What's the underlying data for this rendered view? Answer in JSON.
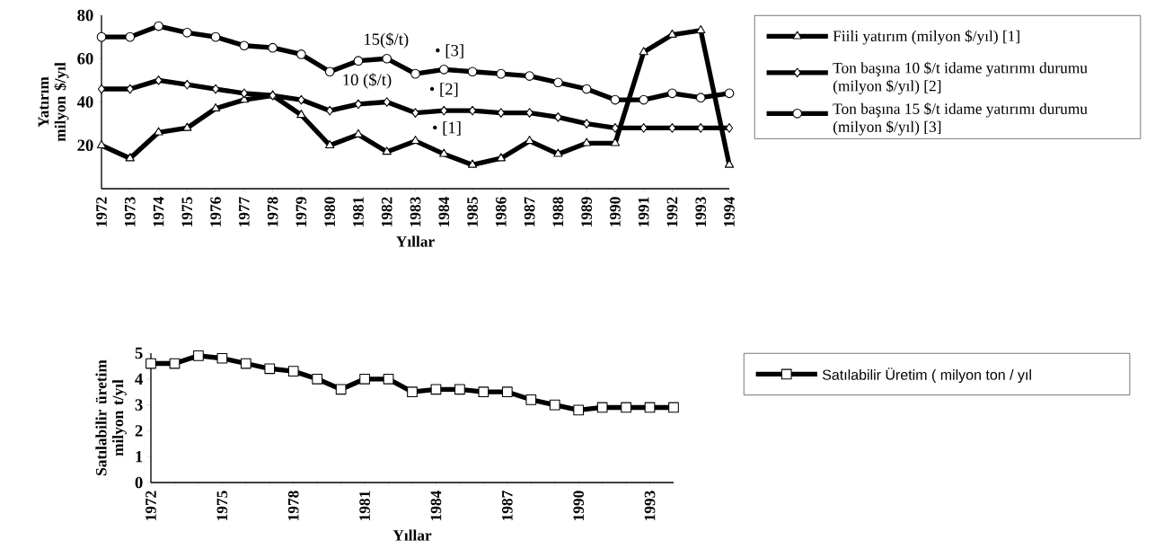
{
  "chart_data": [
    {
      "type": "line",
      "xlabel": "Yıllar",
      "ylabel": "Yatırım milyon $/yıl",
      "categories": [
        "1972",
        "1973",
        "1974",
        "1975",
        "1976",
        "1977",
        "1978",
        "1979",
        "1980",
        "1981",
        "1982",
        "1983",
        "1984",
        "1985",
        "1986",
        "1987",
        "1988",
        "1989",
        "1990",
        "1991",
        "1992",
        "1993",
        "1994"
      ],
      "ylim": [
        0,
        80
      ],
      "yticks": [
        20,
        40,
        60,
        80
      ],
      "legend": "right",
      "annotations": [
        "15($/t)",
        "10 ($/t)",
        "• [3]",
        "• [2]",
        "• [1]"
      ],
      "series": [
        {
          "name": "Fiili yatırım (milyon $/yıl) [1]",
          "color": "#000000",
          "marker": "triangle",
          "values": [
            20,
            14,
            26,
            28,
            37,
            41,
            43,
            34,
            20,
            25,
            17,
            22,
            16,
            11,
            14,
            22,
            16,
            21,
            21,
            63,
            71,
            73,
            11
          ]
        },
        {
          "name": "Ton başına 10 $/t idame yatırımı durumu (milyon $/yıl) [2]",
          "color": "#000000",
          "marker": "diamond",
          "values": [
            46,
            46,
            50,
            48,
            46,
            44,
            43,
            41,
            36,
            39,
            40,
            35,
            36,
            36,
            35,
            35,
            33,
            30,
            28,
            28,
            28,
            28,
            28
          ]
        },
        {
          "name": "Ton başına 15 $/t idame yatırımı durumu (milyon $/yıl) [3]",
          "color": "#000000",
          "marker": "circle",
          "values": [
            70,
            70,
            75,
            72,
            70,
            66,
            65,
            62,
            54,
            59,
            60,
            53,
            55,
            54,
            53,
            52,
            49,
            46,
            41,
            41,
            44,
            42,
            44
          ]
        }
      ]
    },
    {
      "type": "line",
      "xlabel": "Yıllar",
      "ylabel": "Satılabilir üretim milyon t/yıl",
      "categories": [
        "1972",
        null,
        null,
        "1975",
        null,
        null,
        "1978",
        null,
        null,
        "1981",
        null,
        null,
        "1984",
        null,
        null,
        "1987",
        null,
        null,
        "1990",
        null,
        null,
        "1993",
        null
      ],
      "ylim": [
        0,
        5
      ],
      "yticks": [
        0,
        1,
        2,
        3,
        4,
        5
      ],
      "legend": "right",
      "series": [
        {
          "name": "Satılabilir Üretim ( milyon ton / yıl",
          "color": "#000000",
          "marker": "square",
          "values": [
            4.6,
            4.6,
            4.9,
            4.8,
            4.6,
            4.4,
            4.3,
            4.0,
            3.6,
            4.0,
            4.0,
            3.5,
            3.6,
            3.6,
            3.5,
            3.5,
            3.2,
            3.0,
            2.8,
            2.9,
            2.9,
            2.9,
            2.9
          ]
        }
      ]
    }
  ]
}
